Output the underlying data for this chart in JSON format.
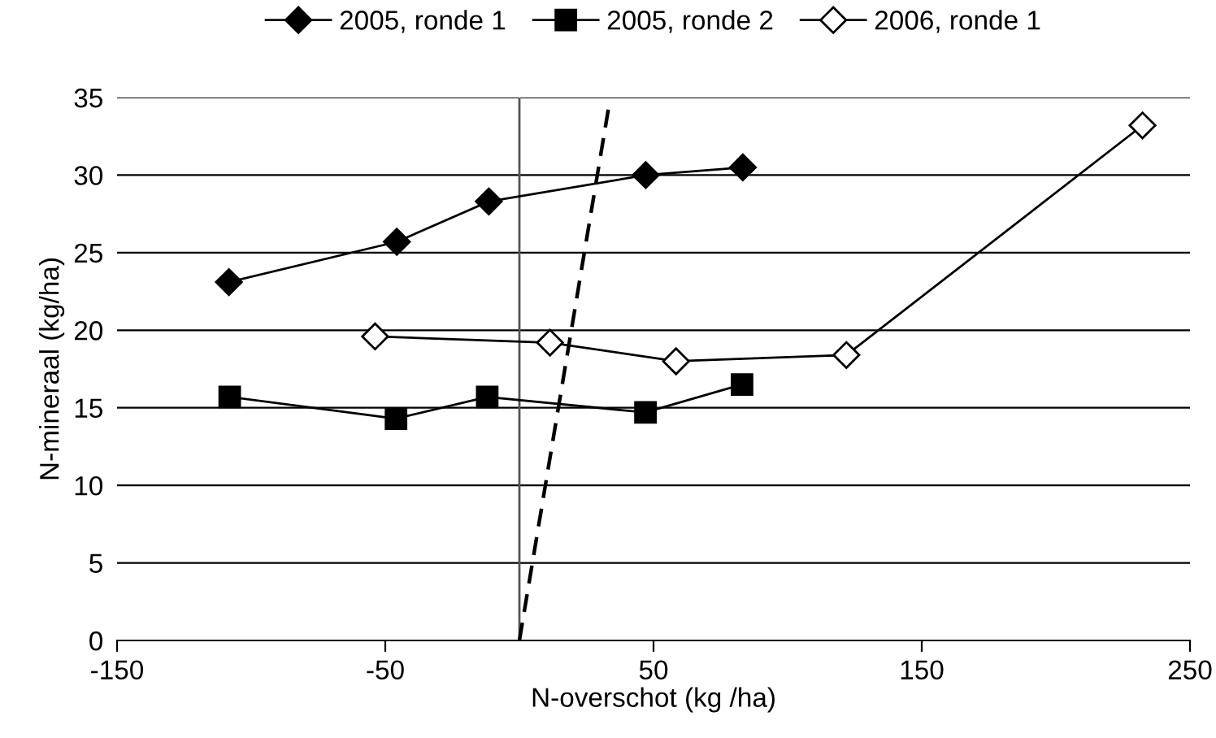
{
  "chart_data": {
    "type": "line",
    "xlabel": "N-overschot (kg /ha)",
    "ylabel": "N-mineraal (kg/ha)",
    "xlim": [
      -150,
      250
    ],
    "xticks": [
      -150,
      -50,
      50,
      150,
      250
    ],
    "ylim": [
      0,
      35
    ],
    "yticks": [
      0,
      5,
      10,
      15,
      20,
      25,
      30,
      35
    ],
    "grid": "y",
    "legend": "top",
    "series": [
      {
        "name": "2005, ronde 1",
        "color": "#000000",
        "marker": "diamond",
        "x": [
          -108.3,
          -45.7,
          -11.4,
          47.1,
          83.3
        ],
        "values": [
          23.1,
          25.7,
          28.3,
          30,
          30.5
        ]
      },
      {
        "name": "2005, ronde 2",
        "color": "#000000",
        "marker": "square",
        "x": [
          -108,
          -46,
          -12,
          47,
          83
        ],
        "values": [
          15.7,
          14.3,
          15.7,
          14.7,
          16.5
        ]
      },
      {
        "name": "2006, ronde 1",
        "color": "#000000",
        "marker": "diamond_open",
        "x": [
          -53.8,
          11.4,
          58.4,
          121.9,
          232.3
        ],
        "values": [
          19.6,
          19.2,
          18,
          18.4,
          33.2
        ]
      },
      {
        "color": "#000000",
        "marker": "none",
        "line_style": "dashed",
        "x": [
          0,
          33.5
        ],
        "values": [
          0,
          34.6
        ]
      }
    ]
  }
}
